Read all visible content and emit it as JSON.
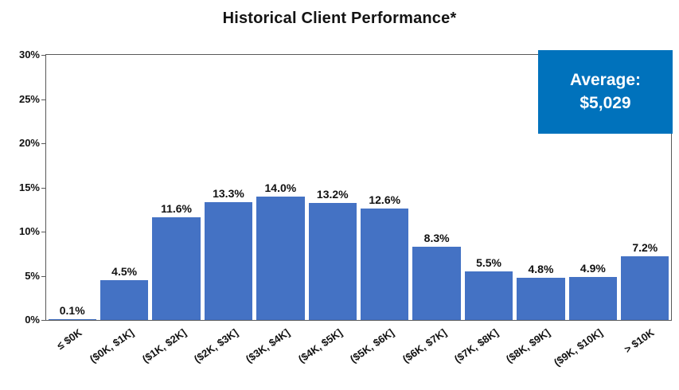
{
  "chart_data": {
    "type": "bar",
    "title": "Historical Client Performance*",
    "categories": [
      "≤ $0K",
      "($0K, $1K]",
      "($1K, $2K]",
      "($2K, $3K]",
      "($3K, $4K]",
      "($4K, $5K]",
      "($5K, $6K]",
      "($6K, $7K]",
      "($7K, $8K]",
      "($8K, $9K]",
      "($9K, $10K]",
      "> $10K"
    ],
    "values": [
      0.1,
      4.5,
      11.6,
      13.3,
      14.0,
      13.2,
      12.6,
      8.3,
      5.5,
      4.8,
      4.9,
      7.2
    ],
    "value_labels": [
      "0.1%",
      "4.5%",
      "11.6%",
      "13.3%",
      "14.0%",
      "13.2%",
      "12.6%",
      "8.3%",
      "5.5%",
      "4.8%",
      "4.9%",
      "7.2%"
    ],
    "xlabel": "",
    "ylabel": "",
    "ylim": [
      0,
      30
    ],
    "y_tick_step": 5,
    "y_ticks": [
      "0%",
      "5%",
      "10%",
      "15%",
      "20%",
      "25%",
      "30%"
    ],
    "grid": false,
    "legend": "none",
    "bar_color": "#4472C4",
    "annotation": {
      "line1": "Average:",
      "line2": "$5,029",
      "bg_color": "#0072BC",
      "text_color": "#FFFFFF"
    }
  }
}
